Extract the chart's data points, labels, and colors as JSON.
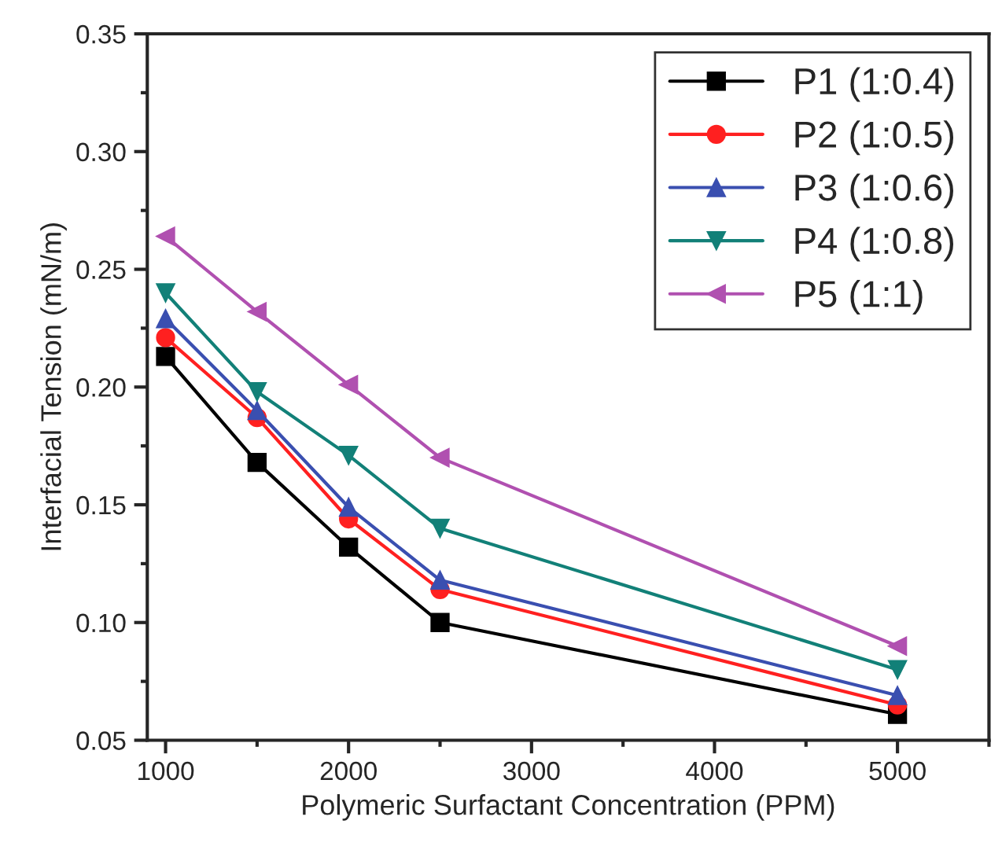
{
  "chart_data": {
    "type": "line",
    "xlabel": "Polymeric Surfactant Concentration (PPM)",
    "ylabel": "Interfacial Tension (mN/m)",
    "x": [
      1000,
      1500,
      2000,
      2500,
      5000
    ],
    "series": [
      {
        "name": "P1 (1:0.4)",
        "color": "#000000",
        "marker": "square",
        "values": [
          0.213,
          0.168,
          0.132,
          0.1,
          0.061
        ]
      },
      {
        "name": "P2 (1:0.5)",
        "color": "#ff2020",
        "marker": "circle",
        "values": [
          0.221,
          0.187,
          0.144,
          0.114,
          0.065
        ]
      },
      {
        "name": "P3 (1:0.6)",
        "color": "#3a4fb0",
        "marker": "triangle",
        "values": [
          0.229,
          0.19,
          0.149,
          0.118,
          0.069
        ]
      },
      {
        "name": "P4 (1:0.8)",
        "color": "#128078",
        "marker": "triangle_down",
        "values": [
          0.24,
          0.198,
          0.171,
          0.14,
          0.08
        ]
      },
      {
        "name": "P5 (1:1)",
        "color": "#b050b0",
        "marker": "triangle_left",
        "values": [
          0.264,
          0.232,
          0.201,
          0.17,
          0.09
        ]
      }
    ],
    "xlim": [
      900,
      5500
    ],
    "ylim": [
      0.05,
      0.35
    ],
    "xticks": [
      1000,
      2000,
      3000,
      4000,
      5000
    ],
    "yticks": [
      {
        "value": 0.05,
        "label": "0.05"
      },
      {
        "value": 0.1,
        "label": "0.10"
      },
      {
        "value": 0.15,
        "label": "0.15"
      },
      {
        "value": 0.2,
        "label": "0.20"
      },
      {
        "value": 0.25,
        "label": "0.25"
      },
      {
        "value": 0.3,
        "label": "0.30"
      },
      {
        "value": 0.35,
        "label": "0.35"
      }
    ],
    "grid": false,
    "legend": "top right",
    "line_style": "solid"
  }
}
